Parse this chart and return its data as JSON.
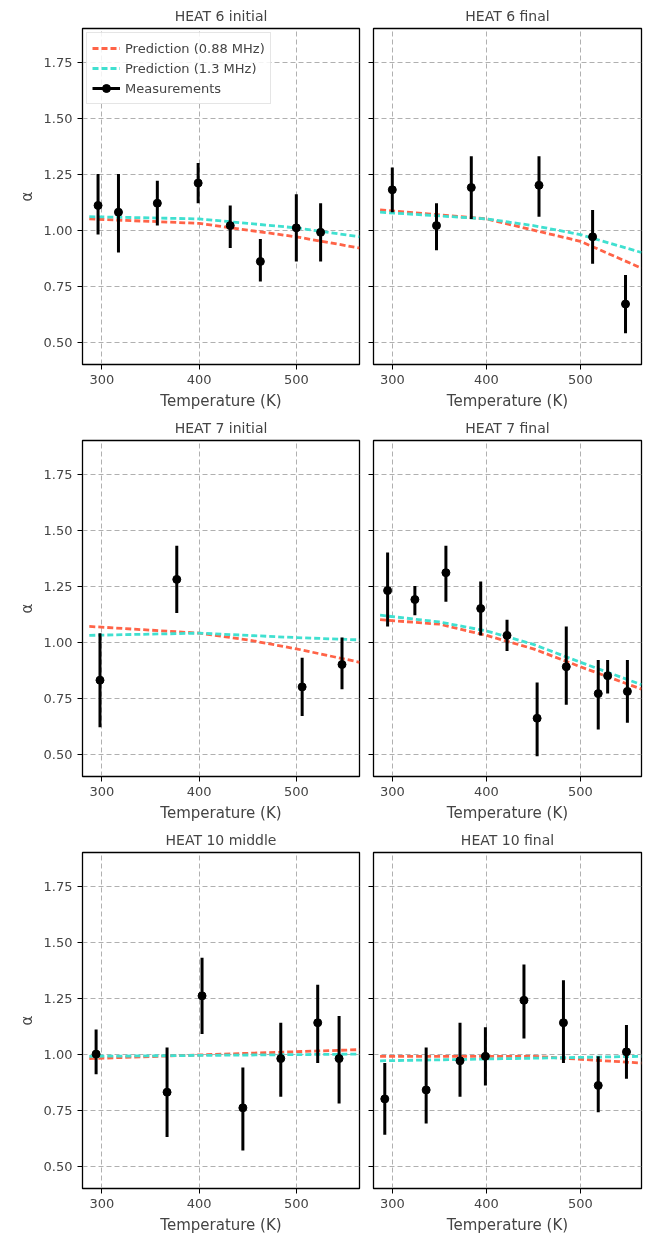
{
  "chart_data": [
    {
      "type": "line",
      "title": "HEAT 6 initial",
      "xlabel": "Temperature (K)",
      "ylabel": "α",
      "xlim": [
        280,
        565
      ],
      "ylim": [
        0.4,
        1.9
      ],
      "xticks": [
        300,
        400,
        500
      ],
      "yticks": [
        {
          "value": 0.5,
          "label": "0.50"
        },
        {
          "value": 0.75,
          "label": "0.75"
        },
        {
          "value": 1.0,
          "label": "1.00"
        },
        {
          "value": 1.25,
          "label": "1.25"
        },
        {
          "value": 1.5,
          "label": "1.50"
        },
        {
          "value": 1.75,
          "label": "1.75"
        }
      ],
      "grid": true,
      "legend": "top left",
      "series": [
        {
          "name": "Prediction (0.88 MHz)",
          "color": "#ff6347",
          "line_style": "dashed",
          "x": [
            287,
            400,
            450,
            500,
            565
          ],
          "values": [
            1.05,
            1.03,
            1.0,
            0.97,
            0.92
          ]
        },
        {
          "name": "Prediction (1.3 MHz)",
          "color": "#40e0d0",
          "line_style": "dashed",
          "x": [
            287,
            400,
            450,
            500,
            565
          ],
          "values": [
            1.06,
            1.05,
            1.03,
            1.01,
            0.97
          ]
        },
        {
          "name": "Measurements",
          "type": "scatter",
          "color": "#000000",
          "marker": "circle",
          "x": [
            296,
            317,
            357,
            399,
            432,
            463,
            500,
            525
          ],
          "values": [
            1.11,
            1.08,
            1.12,
            1.21,
            1.02,
            0.86,
            1.01,
            0.99
          ],
          "errors": [
            [
              0.98,
              1.25
            ],
            [
              0.9,
              1.25
            ],
            [
              1.02,
              1.22
            ],
            [
              1.12,
              1.3
            ],
            [
              0.92,
              1.11
            ],
            [
              0.77,
              0.96
            ],
            [
              0.86,
              1.16
            ],
            [
              0.86,
              1.12
            ]
          ]
        }
      ]
    },
    {
      "type": "line",
      "title": "HEAT 6 final",
      "xlabel": "Temperature (K)",
      "xlim": [
        280,
        565
      ],
      "ylim": [
        0.4,
        1.9
      ],
      "xticks": [
        300,
        400,
        500
      ],
      "yticks": [
        0.5,
        0.75,
        1.0,
        1.25,
        1.5,
        1.75
      ],
      "grid": true,
      "tick_labels": "x",
      "series": [
        {
          "type": "line",
          "color": "#ff6347",
          "line_style": "dashed",
          "x": [
            287,
            400,
            450,
            500,
            565
          ],
          "values": [
            1.09,
            1.05,
            1.0,
            0.95,
            0.83
          ]
        },
        {
          "type": "line",
          "color": "#40e0d0",
          "line_style": "dashed",
          "x": [
            287,
            400,
            450,
            500,
            565
          ],
          "values": [
            1.08,
            1.05,
            1.02,
            0.98,
            0.9
          ]
        },
        {
          "type": "scatter",
          "color": "#000000",
          "marker": "circle",
          "x": [
            300,
            347,
            384,
            456,
            513,
            548
          ],
          "values": [
            1.18,
            1.02,
            1.19,
            1.2,
            0.97,
            0.67
          ],
          "errors": [
            [
              1.08,
              1.28
            ],
            [
              0.91,
              1.12
            ],
            [
              1.05,
              1.33
            ],
            [
              1.06,
              1.33
            ],
            [
              0.85,
              1.09
            ],
            [
              0.54,
              0.8
            ]
          ]
        }
      ]
    },
    {
      "type": "line",
      "title": "HEAT 7 initial",
      "xlabel": "Temperature (K)",
      "ylabel": "α",
      "xlim": [
        280,
        565
      ],
      "ylim": [
        0.4,
        1.9
      ],
      "xticks": [
        300,
        400,
        500
      ],
      "yticks": [
        {
          "value": 0.5,
          "label": "0.50"
        },
        {
          "value": 0.75,
          "label": "0.75"
        },
        {
          "value": 1.0,
          "label": "1.00"
        },
        {
          "value": 1.25,
          "label": "1.25"
        },
        {
          "value": 1.5,
          "label": "1.50"
        },
        {
          "value": 1.75,
          "label": "1.75"
        }
      ],
      "grid": true,
      "series": [
        {
          "type": "line",
          "color": "#ff6347",
          "line_style": "dashed",
          "x": [
            287,
            400,
            450,
            500,
            565
          ],
          "values": [
            1.07,
            1.04,
            1.01,
            0.97,
            0.91
          ]
        },
        {
          "type": "line",
          "color": "#40e0d0",
          "line_style": "dashed",
          "x": [
            287,
            400,
            500,
            565
          ],
          "values": [
            1.03,
            1.04,
            1.02,
            1.01
          ]
        },
        {
          "type": "scatter",
          "color": "#000000",
          "marker": "circle",
          "x": [
            298,
            377,
            506,
            547
          ],
          "values": [
            0.83,
            1.28,
            0.8,
            0.9
          ],
          "errors": [
            [
              0.62,
              1.04
            ],
            [
              1.13,
              1.43
            ],
            [
              0.67,
              0.93
            ],
            [
              0.79,
              1.02
            ]
          ]
        }
      ]
    },
    {
      "type": "line",
      "title": "HEAT 7 final",
      "xlabel": "Temperature (K)",
      "xlim": [
        280,
        565
      ],
      "ylim": [
        0.4,
        1.9
      ],
      "xticks": [
        300,
        400,
        500
      ],
      "yticks": [
        0.5,
        0.75,
        1.0,
        1.25,
        1.5,
        1.75
      ],
      "grid": true,
      "tick_labels": "x",
      "series": [
        {
          "type": "line",
          "color": "#ff6347",
          "line_style": "dashed",
          "x": [
            287,
            350,
            400,
            450,
            500,
            565
          ],
          "values": [
            1.1,
            1.08,
            1.03,
            0.97,
            0.89,
            0.79
          ]
        },
        {
          "type": "line",
          "color": "#40e0d0",
          "line_style": "dashed",
          "x": [
            287,
            350,
            400,
            450,
            500,
            565
          ],
          "values": [
            1.12,
            1.09,
            1.05,
            0.99,
            0.91,
            0.81
          ]
        },
        {
          "type": "scatter",
          "color": "#000000",
          "marker": "circle",
          "x": [
            295,
            324,
            357,
            394,
            422,
            454,
            485,
            519,
            529,
            550
          ],
          "values": [
            1.23,
            1.19,
            1.31,
            1.15,
            1.03,
            0.66,
            0.89,
            0.77,
            0.85,
            0.78
          ],
          "errors": [
            [
              1.07,
              1.4
            ],
            [
              1.12,
              1.25
            ],
            [
              1.18,
              1.43
            ],
            [
              1.03,
              1.27
            ],
            [
              0.96,
              1.1
            ],
            [
              0.49,
              0.82
            ],
            [
              0.72,
              1.07
            ],
            [
              0.61,
              0.92
            ],
            [
              0.77,
              0.92
            ],
            [
              0.64,
              0.92
            ]
          ]
        }
      ]
    },
    {
      "type": "line",
      "title": "HEAT 10 middle",
      "xlabel": "Temperature (K)",
      "ylabel": "α",
      "xlim": [
        280,
        565
      ],
      "ylim": [
        0.4,
        1.9
      ],
      "xticks": [
        300,
        400,
        500
      ],
      "yticks": [
        {
          "value": 0.5,
          "label": "0.50"
        },
        {
          "value": 0.75,
          "label": "0.75"
        },
        {
          "value": 1.0,
          "label": "1.00"
        },
        {
          "value": 1.25,
          "label": "1.25"
        },
        {
          "value": 1.5,
          "label": "1.50"
        },
        {
          "value": 1.75,
          "label": "1.75"
        }
      ],
      "grid": true,
      "series": [
        {
          "type": "line",
          "color": "#ff6347",
          "line_style": "dashed",
          "x": [
            287,
            565
          ],
          "values": [
            0.98,
            1.02
          ]
        },
        {
          "type": "line",
          "color": "#40e0d0",
          "line_style": "dashed",
          "x": [
            287,
            565
          ],
          "values": [
            0.99,
            1.0
          ]
        },
        {
          "type": "scatter",
          "color": "#000000",
          "marker": "circle",
          "x": [
            294,
            367,
            403,
            445,
            484,
            522,
            544
          ],
          "values": [
            1.0,
            0.83,
            1.26,
            0.76,
            0.98,
            1.14,
            0.98
          ],
          "errors": [
            [
              0.91,
              1.11
            ],
            [
              0.63,
              1.03
            ],
            [
              1.09,
              1.43
            ],
            [
              0.57,
              0.94
            ],
            [
              0.81,
              1.14
            ],
            [
              0.96,
              1.31
            ],
            [
              0.78,
              1.17
            ]
          ]
        }
      ]
    },
    {
      "type": "line",
      "title": "HEAT 10 final",
      "xlabel": "Temperature (K)",
      "xlim": [
        280,
        565
      ],
      "ylim": [
        0.4,
        1.9
      ],
      "xticks": [
        300,
        400,
        500
      ],
      "yticks": [
        0.5,
        0.75,
        1.0,
        1.25,
        1.5,
        1.75
      ],
      "grid": true,
      "tick_labels": "x",
      "series": [
        {
          "type": "line",
          "color": "#ff6347",
          "line_style": "dashed",
          "x": [
            287,
            450,
            565
          ],
          "values": [
            0.99,
            0.99,
            0.96
          ]
        },
        {
          "type": "line",
          "color": "#40e0d0",
          "line_style": "dashed",
          "x": [
            287,
            565
          ],
          "values": [
            0.97,
            0.99
          ]
        },
        {
          "type": "scatter",
          "color": "#000000",
          "marker": "circle",
          "x": [
            292,
            336,
            372,
            399,
            440,
            482,
            519,
            549
          ],
          "values": [
            0.8,
            0.84,
            0.97,
            0.99,
            1.24,
            1.14,
            0.86,
            1.01
          ],
          "errors": [
            [
              0.64,
              0.96
            ],
            [
              0.69,
              1.03
            ],
            [
              0.81,
              1.14
            ],
            [
              0.86,
              1.12
            ],
            [
              1.07,
              1.4
            ],
            [
              0.96,
              1.33
            ],
            [
              0.74,
              0.99
            ],
            [
              0.89,
              1.13
            ]
          ]
        }
      ]
    }
  ]
}
